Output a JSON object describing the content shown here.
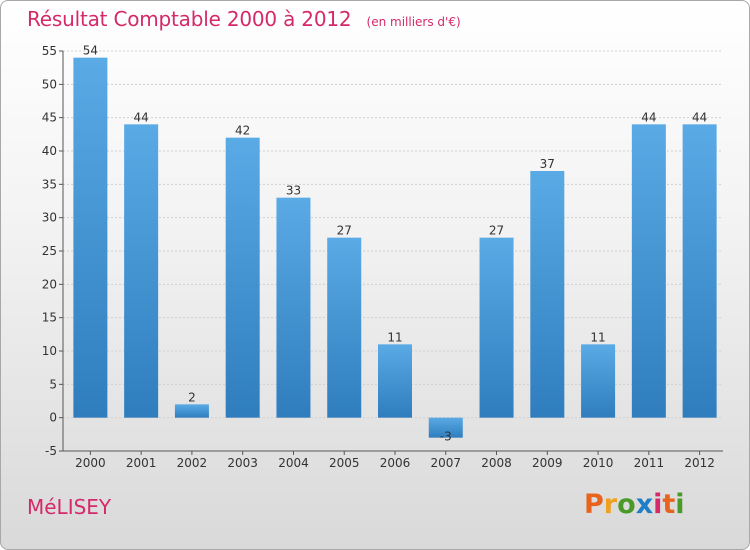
{
  "header": {
    "title": "Résultat Comptable 2000 à 2012",
    "unit": "(en milliers d'€)"
  },
  "footer": {
    "commune": "MéLISEY",
    "logo_letters": [
      "P",
      "r",
      "o",
      "x",
      "i",
      "t",
      "i"
    ],
    "logo_colors": [
      "#e8641e",
      "#f0a020",
      "#4a9a2a",
      "#1e7ec8",
      "#d42a6a",
      "#e8641e",
      "#4a9a2a"
    ]
  },
  "colors": {
    "bar_top": "#5aaae6",
    "bar_bottom": "#2f7dbd",
    "grid": "#cfcfcf",
    "axis": "#555555",
    "title": "#d42a6a"
  },
  "chart_data": {
    "type": "bar",
    "title": "Résultat Comptable 2000 à 2012",
    "subtitle": "(en milliers d'€)",
    "xlabel": "",
    "ylabel": "",
    "categories": [
      "2000",
      "2001",
      "2002",
      "2003",
      "2004",
      "2005",
      "2006",
      "2007",
      "2008",
      "2009",
      "2010",
      "2011",
      "2012"
    ],
    "values": [
      54,
      44,
      2,
      42,
      33,
      27,
      11,
      -3,
      27,
      37,
      11,
      44,
      44
    ],
    "ylim": [
      -5,
      55
    ],
    "yticks": [
      -5,
      0,
      5,
      10,
      15,
      20,
      25,
      30,
      35,
      40,
      45,
      50,
      55
    ],
    "grid": true,
    "legend": "none"
  }
}
